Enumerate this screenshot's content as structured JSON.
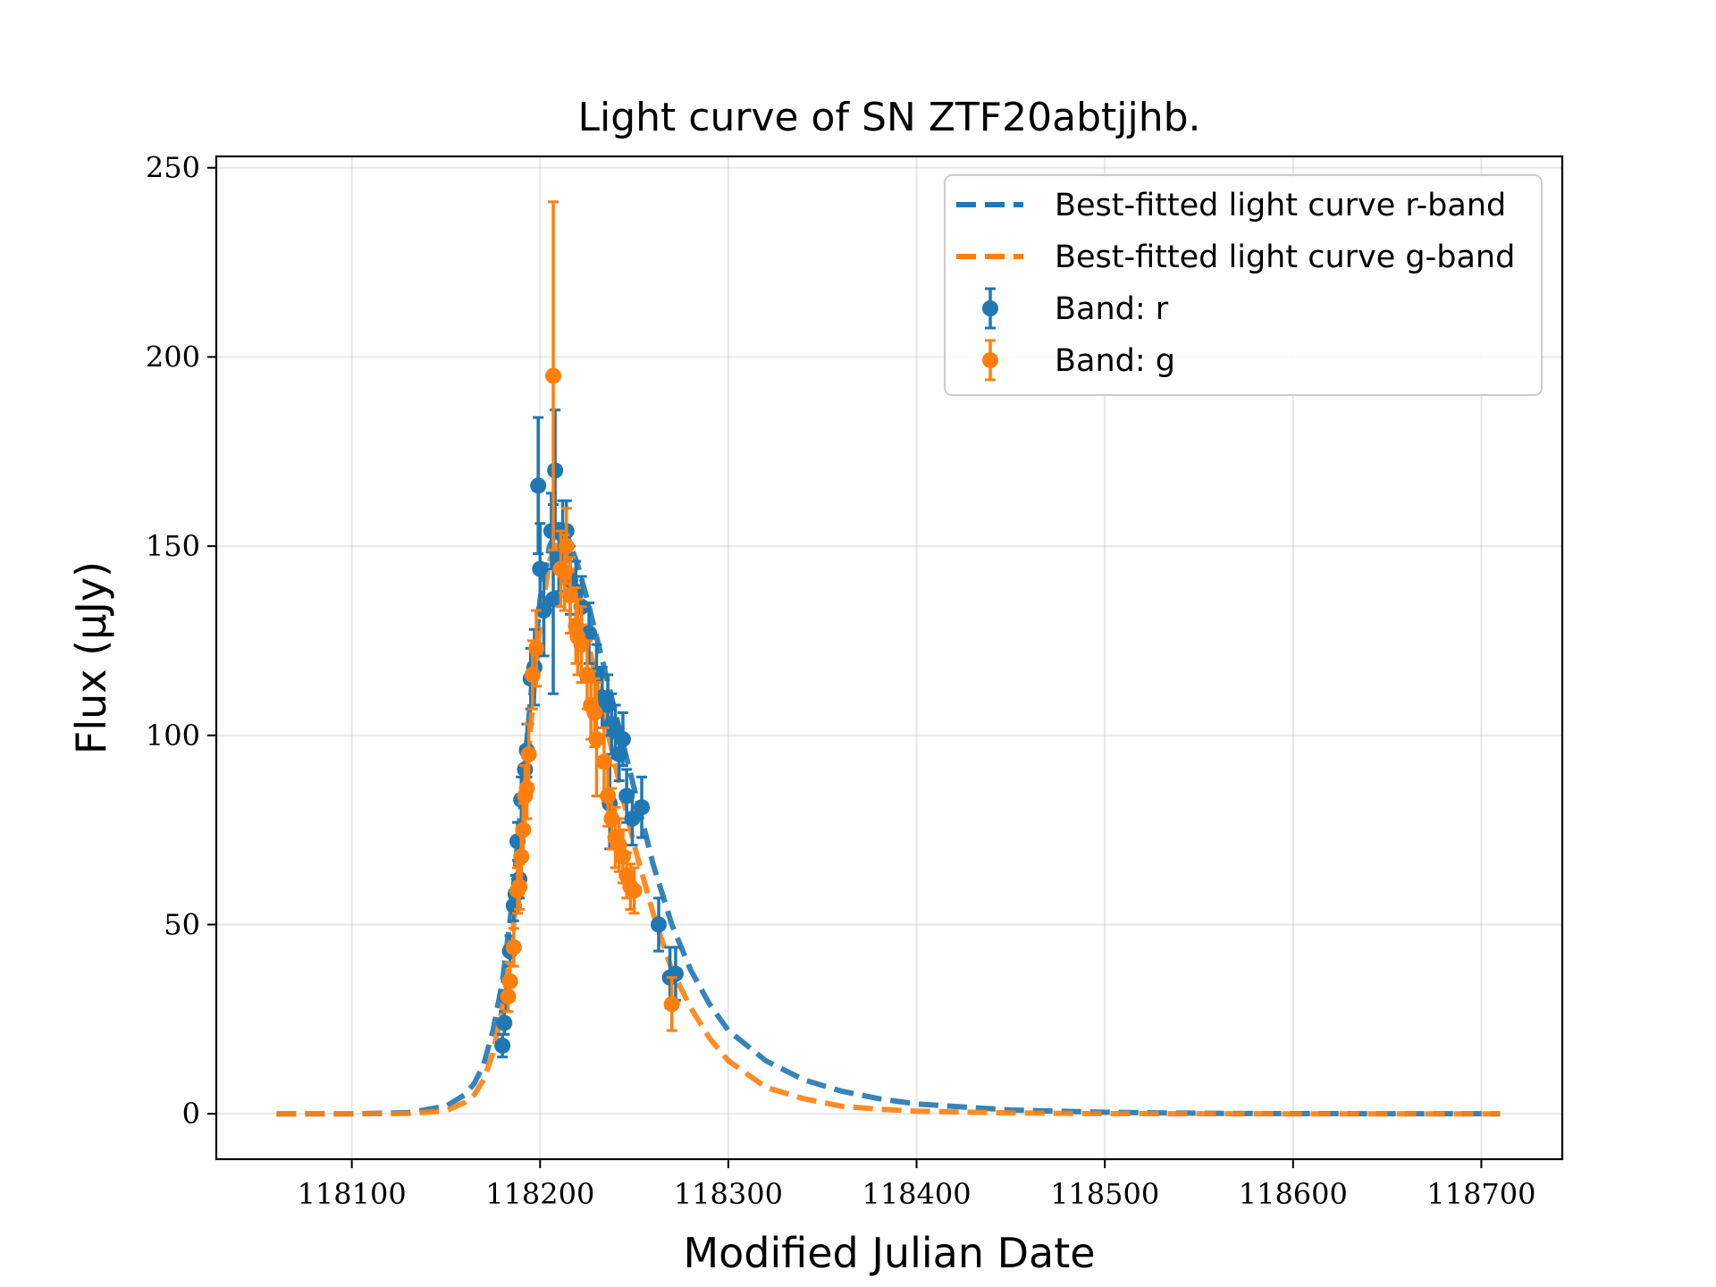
{
  "chart_data": {
    "type": "scatter",
    "title": "Light curve of SN ZTF20abtjjhb.",
    "xlabel": "Modified Julian Date",
    "ylabel": "Flux (μJy)",
    "xlim": [
      118028,
      118743
    ],
    "ylim": [
      -12,
      253
    ],
    "xticks": [
      118100,
      118200,
      118300,
      118400,
      118500,
      118600,
      118700
    ],
    "yticks": [
      0,
      50,
      100,
      150,
      200,
      250
    ],
    "grid": true,
    "legend_position": "top-right",
    "colors": {
      "r": "#1f77b4",
      "g": "#ff7f0e"
    },
    "series": [
      {
        "name": "Best-fitted light curve r-band",
        "kind": "model",
        "color": "#1f77b4",
        "line_style": "dashed",
        "x": [
          118060,
          118100,
          118130,
          118150,
          118160,
          118165,
          118170,
          118175,
          118180,
          118185,
          118190,
          118195,
          118200,
          118205,
          118210,
          118215,
          118220,
          118225,
          118230,
          118240,
          118250,
          118260,
          118270,
          118280,
          118290,
          118300,
          118320,
          118340,
          118360,
          118380,
          118400,
          118450,
          118500,
          118550,
          118600,
          118650,
          118710
        ],
        "y": [
          0,
          0,
          0.3,
          2,
          5,
          8,
          13,
          22,
          35,
          55,
          82,
          110,
          136,
          150,
          155,
          152,
          145,
          136,
          126,
          106,
          86,
          66,
          50,
          38,
          29,
          22,
          14,
          9,
          6,
          4,
          2.6,
          1,
          0.4,
          0.15,
          0.05,
          0.02,
          0
        ]
      },
      {
        "name": "Best-fitted light curve g-band",
        "kind": "model",
        "color": "#ff7f0e",
        "line_style": "dashed",
        "x": [
          118060,
          118100,
          118130,
          118150,
          118160,
          118165,
          118170,
          118175,
          118180,
          118185,
          118190,
          118195,
          118200,
          118205,
          118210,
          118215,
          118220,
          118225,
          118230,
          118240,
          118250,
          118260,
          118270,
          118280,
          118290,
          118300,
          118320,
          118340,
          118360,
          118380,
          118400,
          118450,
          118500,
          118550,
          118600,
          118650,
          118710
        ],
        "y": [
          0,
          0,
          0.1,
          0.8,
          3,
          5,
          9,
          16,
          28,
          45,
          72,
          102,
          130,
          146,
          152,
          148,
          138,
          126,
          114,
          92,
          71,
          53,
          38,
          28,
          20,
          14,
          7,
          4,
          2,
          1.2,
          0.7,
          0.2,
          0.05,
          0.02,
          0,
          0,
          0
        ]
      },
      {
        "name": "Band: r",
        "kind": "data",
        "color": "#1f77b4",
        "points": [
          {
            "x": 118180,
            "y": 18,
            "err": 3
          },
          {
            "x": 118181,
            "y": 24,
            "err": 3
          },
          {
            "x": 118182,
            "y": 31,
            "err": 4
          },
          {
            "x": 118184,
            "y": 43,
            "err": 4
          },
          {
            "x": 118186,
            "y": 55,
            "err": 4
          },
          {
            "x": 118187,
            "y": 58,
            "err": 5
          },
          {
            "x": 118188,
            "y": 72,
            "err": 5
          },
          {
            "x": 118189,
            "y": 62,
            "err": 5
          },
          {
            "x": 118190,
            "y": 83,
            "err": 6
          },
          {
            "x": 118192,
            "y": 91,
            "err": 6
          },
          {
            "x": 118193,
            "y": 96,
            "err": 7
          },
          {
            "x": 118195,
            "y": 115,
            "err": 8
          },
          {
            "x": 118197,
            "y": 118,
            "err": 10
          },
          {
            "x": 118199,
            "y": 166,
            "err": 18
          },
          {
            "x": 118200,
            "y": 144,
            "err": 12
          },
          {
            "x": 118202,
            "y": 133,
            "err": 12
          },
          {
            "x": 118206,
            "y": 154,
            "err": 10
          },
          {
            "x": 118207,
            "y": 136,
            "err": 25
          },
          {
            "x": 118208,
            "y": 170,
            "err": 16
          },
          {
            "x": 118210,
            "y": 147,
            "err": 9
          },
          {
            "x": 118212,
            "y": 153,
            "err": 9
          },
          {
            "x": 118214,
            "y": 154,
            "err": 8
          },
          {
            "x": 118216,
            "y": 141,
            "err": 9
          },
          {
            "x": 118219,
            "y": 138,
            "err": 8
          },
          {
            "x": 118222,
            "y": 134,
            "err": 8
          },
          {
            "x": 118226,
            "y": 127,
            "err": 8
          },
          {
            "x": 118230,
            "y": 116,
            "err": 8
          },
          {
            "x": 118233,
            "y": 110,
            "err": 8
          },
          {
            "x": 118236,
            "y": 108,
            "err": 8
          },
          {
            "x": 118238,
            "y": 103,
            "err": 8
          },
          {
            "x": 118240,
            "y": 101,
            "err": 7
          },
          {
            "x": 118242,
            "y": 95,
            "err": 7
          },
          {
            "x": 118244,
            "y": 99,
            "err": 7
          },
          {
            "x": 118246,
            "y": 84,
            "err": 7
          },
          {
            "x": 118249,
            "y": 78,
            "err": 7
          },
          {
            "x": 118254,
            "y": 81,
            "err": 8
          },
          {
            "x": 118237,
            "y": 82,
            "err": 12
          },
          {
            "x": 118263,
            "y": 50,
            "err": 7
          },
          {
            "x": 118269,
            "y": 36,
            "err": 8
          },
          {
            "x": 118272,
            "y": 37,
            "err": 7
          }
        ]
      },
      {
        "name": "Band: g",
        "kind": "data",
        "color": "#ff7f0e",
        "points": [
          {
            "x": 118183,
            "y": 31,
            "err": 4
          },
          {
            "x": 118184,
            "y": 35,
            "err": 5
          },
          {
            "x": 118186,
            "y": 44,
            "err": 5
          },
          {
            "x": 118188,
            "y": 59,
            "err": 6
          },
          {
            "x": 118189,
            "y": 60,
            "err": 6
          },
          {
            "x": 118190,
            "y": 68,
            "err": 7
          },
          {
            "x": 118191,
            "y": 75,
            "err": 7
          },
          {
            "x": 118192,
            "y": 84,
            "err": 8
          },
          {
            "x": 118193,
            "y": 86,
            "err": 8
          },
          {
            "x": 118194,
            "y": 95,
            "err": 8
          },
          {
            "x": 118196,
            "y": 116,
            "err": 9
          },
          {
            "x": 118198,
            "y": 123,
            "err": 10
          },
          {
            "x": 118207,
            "y": 195,
            "err": 46
          },
          {
            "x": 118211,
            "y": 144,
            "err": 10
          },
          {
            "x": 118213,
            "y": 143,
            "err": 10
          },
          {
            "x": 118214,
            "y": 150,
            "err": 10
          },
          {
            "x": 118216,
            "y": 137,
            "err": 10
          },
          {
            "x": 118219,
            "y": 129,
            "err": 10
          },
          {
            "x": 118220,
            "y": 126,
            "err": 10
          },
          {
            "x": 118222,
            "y": 124,
            "err": 10
          },
          {
            "x": 118225,
            "y": 116,
            "err": 9
          },
          {
            "x": 118227,
            "y": 108,
            "err": 9
          },
          {
            "x": 118229,
            "y": 106,
            "err": 9
          },
          {
            "x": 118230,
            "y": 99,
            "err": 15
          },
          {
            "x": 118234,
            "y": 93,
            "err": 9
          },
          {
            "x": 118236,
            "y": 84,
            "err": 8
          },
          {
            "x": 118238,
            "y": 78,
            "err": 8
          },
          {
            "x": 118240,
            "y": 73,
            "err": 8
          },
          {
            "x": 118242,
            "y": 71,
            "err": 7
          },
          {
            "x": 118244,
            "y": 68,
            "err": 7
          },
          {
            "x": 118246,
            "y": 63,
            "err": 6
          },
          {
            "x": 118248,
            "y": 60,
            "err": 6
          },
          {
            "x": 118250,
            "y": 59,
            "err": 6
          },
          {
            "x": 118270,
            "y": 29,
            "err": 7
          }
        ]
      }
    ]
  }
}
